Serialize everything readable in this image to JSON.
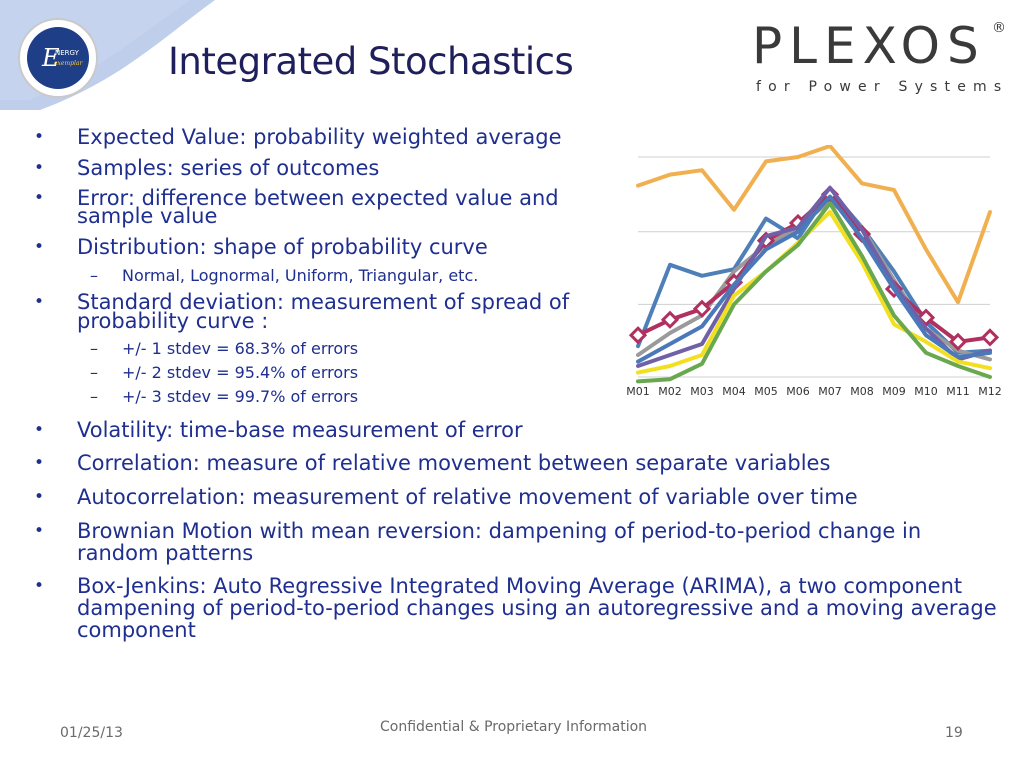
{
  "header": {
    "title": "Integrated Stochastics",
    "logo_left": {
      "line1": "E",
      "line2": "NERGY",
      "line3": "exemplar",
      "icon": "energy-exemplar-logo"
    },
    "brand": {
      "name": "PLEXOS",
      "registered": "®",
      "tagline": "for Power Systems"
    }
  },
  "bullets": [
    {
      "text": "Expected Value: probability weighted average"
    },
    {
      "text": "Samples: series of outcomes"
    },
    {
      "line1": "Error: difference between expected value and",
      "line2": "sample value"
    },
    {
      "text": "Distribution: shape of probability curve"
    },
    {
      "sub": "Normal, Lognormal, Uniform, Triangular, etc."
    },
    {
      "line1": "Standard deviation: measurement of spread of",
      "line2": "probability curve :"
    },
    {
      "sub_items": [
        "+/- 1 stdev = 68.3% of errors",
        "+/- 2 stdev = 95.4% of errors",
        "+/- 3 stdev = 99.7% of errors"
      ]
    },
    {
      "text": "Volatility: time-base measurement of error"
    },
    {
      "text": "Correlation: measure of relative movement between separate variables"
    },
    {
      "text": "Autocorrelation: measurement of relative movement of variable over time"
    },
    {
      "line1": "Brownian Motion with mean reversion: dampening of period-to-period change in",
      "line2": "random patterns"
    },
    {
      "line1": "Box-Jenkins: Auto Regressive Integrated Moving Average (ARIMA), a two component",
      "line2": "dampening of period-to-period changes using an autoregressive and a moving average",
      "line3": "component"
    }
  ],
  "chart_data": {
    "type": "line",
    "categories": [
      "M01",
      "M02",
      "M03",
      "M04",
      "M05",
      "M06",
      "M07",
      "M08",
      "M09",
      "M10",
      "M11",
      "M12"
    ],
    "ylim": [
      0,
      100
    ],
    "grid": true,
    "series": [
      {
        "color": "#f0b050",
        "values": [
          87,
          92,
          94,
          76,
          98,
          100,
          105,
          88,
          85,
          58,
          34,
          75
        ],
        "marker": "none"
      },
      {
        "color": "#4f7fb8",
        "values": [
          14,
          51,
          46,
          49,
          72,
          63,
          85,
          68,
          48,
          25,
          11,
          12
        ],
        "marker": "none"
      },
      {
        "color": "#9a9a9a",
        "values": [
          10,
          20,
          28,
          48,
          60,
          68,
          80,
          68,
          44,
          22,
          12,
          8
        ],
        "marker": "none"
      },
      {
        "color": "#b03060",
        "values": [
          19,
          26,
          31,
          43,
          62,
          70,
          83,
          65,
          40,
          27,
          16,
          18
        ],
        "marker": "diamond"
      },
      {
        "color": "#7060a8",
        "values": [
          5,
          10,
          15,
          40,
          64,
          68,
          86,
          67,
          42,
          22,
          8,
          12
        ],
        "marker": "none"
      },
      {
        "color": "#4a78b8",
        "values": [
          7,
          15,
          23,
          42,
          58,
          66,
          82,
          63,
          40,
          19,
          9,
          11
        ],
        "marker": "none"
      },
      {
        "color": "#f2e020",
        "values": [
          2,
          5,
          10,
          37,
          48,
          61,
          75,
          52,
          24,
          16,
          7,
          4
        ],
        "marker": "none"
      },
      {
        "color": "#6aa84f",
        "values": [
          -2,
          -1,
          6,
          33,
          48,
          60,
          79,
          55,
          28,
          11,
          5,
          0
        ],
        "marker": "none"
      }
    ]
  },
  "footer": {
    "date": "01/25/13",
    "confidential": "Confidential & Proprietary Information",
    "page": "19"
  }
}
